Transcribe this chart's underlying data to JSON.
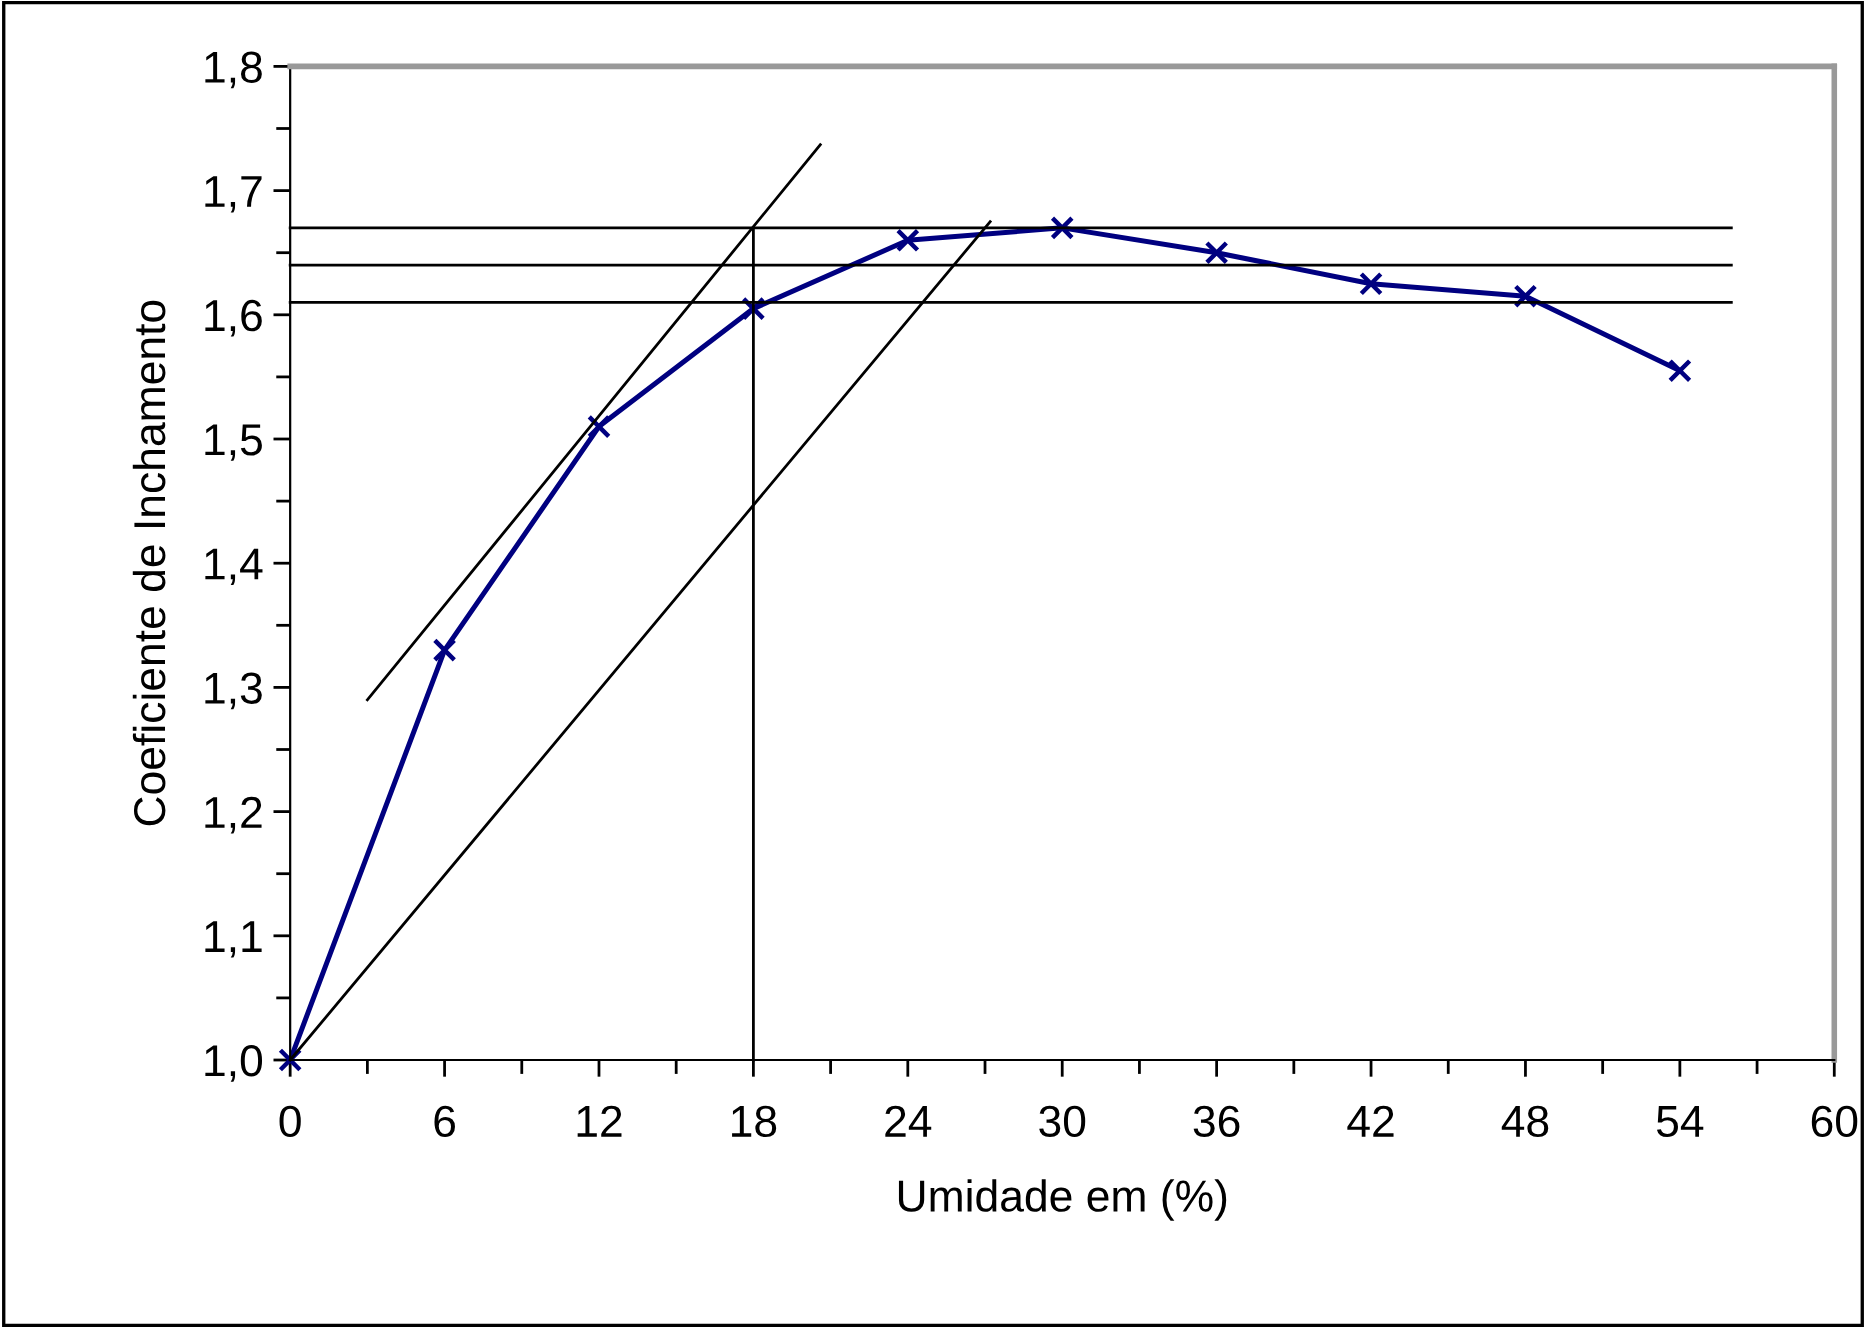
{
  "chart_data": {
    "type": "line",
    "xlabel": "Umidade em (%)",
    "ylabel": "Coeficiente de Inchamento",
    "x": [
      0,
      6,
      12,
      18,
      24,
      30,
      36,
      42,
      48,
      54
    ],
    "series": [
      {
        "color": "#000080",
        "values": [
          1.0,
          1.33,
          1.51,
          1.605,
          1.66,
          1.67,
          1.65,
          1.625,
          1.615,
          1.555
        ],
        "marker": "cross"
      },
      {
        "color": "#000000",
        "x": [
          0,
          56
        ],
        "values": [
          1.67,
          1.67
        ],
        "marker": "none"
      },
      {
        "color": "#000000",
        "x": [
          0,
          56
        ],
        "values": [
          1.64,
          1.64
        ],
        "marker": "none"
      },
      {
        "color": "#000000",
        "x": [
          0,
          56
        ],
        "values": [
          1.61,
          1.61
        ],
        "marker": "none"
      },
      {
        "color": "#000000",
        "x": [
          18,
          18
        ],
        "values": [
          1.0,
          1.67
        ],
        "marker": "none"
      },
      {
        "color": "#000000",
        "x": [
          3,
          20.6
        ],
        "values": [
          1.29,
          1.737
        ],
        "marker": "none"
      },
      {
        "color": "#000000",
        "x": [
          0,
          27.2
        ],
        "values": [
          1.0,
          1.675
        ],
        "marker": "none"
      }
    ],
    "xlim": [
      0,
      60
    ],
    "xticks": [
      0,
      6,
      12,
      18,
      24,
      30,
      36,
      42,
      48,
      54,
      60
    ],
    "ylim": [
      1.0,
      1.8
    ],
    "yticks": [
      {
        "value": 1.0,
        "label": "1,0"
      },
      {
        "value": 1.1,
        "label": "1,1"
      },
      {
        "value": 1.2,
        "label": "1,2"
      },
      {
        "value": 1.3,
        "label": "1,3"
      },
      {
        "value": 1.4,
        "label": "1,4"
      },
      {
        "value": 1.5,
        "label": "1,5"
      },
      {
        "value": 1.6,
        "label": "1,6"
      },
      {
        "value": 1.7,
        "label": "1,7"
      },
      {
        "value": 1.8,
        "label": "1,8"
      }
    ],
    "grid": false,
    "legend": false
  }
}
